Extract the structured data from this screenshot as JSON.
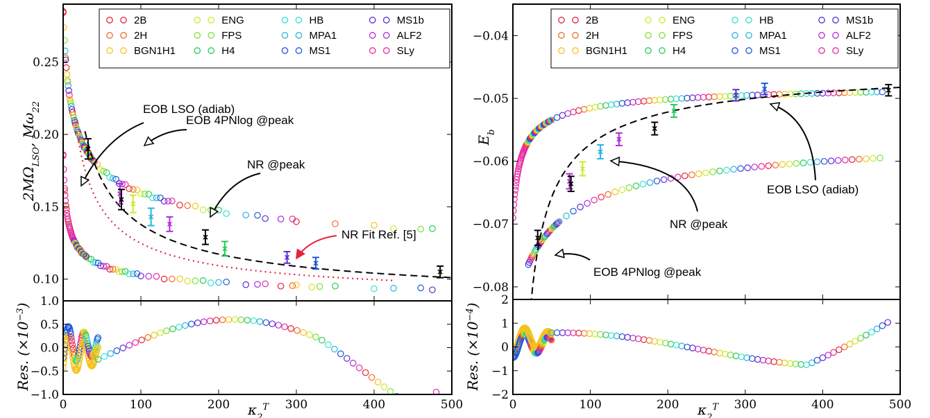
{
  "figure": {
    "legend_entries": [
      {
        "name": "2B",
        "color": "#e8203c"
      },
      {
        "name": "2H",
        "color": "#f26a2a"
      },
      {
        "name": "BGN1H1",
        "color": "#f5c21b"
      },
      {
        "name": "ENG",
        "color": "#cfe82a"
      },
      {
        "name": "FPS",
        "color": "#7ee03a"
      },
      {
        "name": "H4",
        "color": "#28c95a"
      },
      {
        "name": "HB",
        "color": "#36e0d0"
      },
      {
        "name": "MPA1",
        "color": "#2ab2e0"
      },
      {
        "name": "MS1",
        "color": "#1f56d8"
      },
      {
        "name": "MS1b",
        "color": "#5a2cd0"
      },
      {
        "name": "ALF2",
        "color": "#b02cd8"
      },
      {
        "name": "SLy",
        "color": "#e62aa0"
      }
    ]
  },
  "chart_data": [
    {
      "type": "scatter",
      "panel": "left-top",
      "ylabel": "2MΩ_LSO, Mω_22",
      "xlim": [
        0,
        500
      ],
      "ylim": [
        0.085,
        0.29
      ],
      "yticks": [
        "0.10",
        "0.15",
        "0.20",
        "0.25"
      ],
      "ytick_values": [
        0.1,
        0.15,
        0.2,
        0.25
      ],
      "nr_peak_points": [
        {
          "x": 32,
          "y": 0.19,
          "err": 0.007,
          "color": "#000000"
        },
        {
          "x": 73,
          "y": 0.159,
          "err": 0.007,
          "color": "#b02cd8"
        },
        {
          "x": 75,
          "y": 0.155,
          "err": 0.007,
          "color": "#000000"
        },
        {
          "x": 90,
          "y": 0.152,
          "err": 0.006,
          "color": "#cfe82a"
        },
        {
          "x": 113,
          "y": 0.143,
          "err": 0.006,
          "color": "#2ab2e0"
        },
        {
          "x": 137,
          "y": 0.138,
          "err": 0.005,
          "color": "#b02cd8"
        },
        {
          "x": 183,
          "y": 0.129,
          "err": 0.005,
          "color": "#000000"
        },
        {
          "x": 208,
          "y": 0.121,
          "err": 0.005,
          "color": "#28c95a"
        },
        {
          "x": 288,
          "y": 0.115,
          "err": 0.004,
          "color": "#5a2cd0"
        },
        {
          "x": 325,
          "y": 0.111,
          "err": 0.004,
          "color": "#1f56d8"
        },
        {
          "x": 485,
          "y": 0.105,
          "err": 0.004,
          "color": "#000000"
        }
      ],
      "series_curves": {
        "eob_4pnlog_peak": {
          "a": 0.095,
          "b": 0.19,
          "c": 0.33,
          "d": 1.0
        },
        "eob_lso_adiab": {
          "a": 0.083,
          "b": 0.103,
          "c": 0.43,
          "d": 1.0
        }
      },
      "peak_scatter_x": [
        0,
        3,
        6,
        9,
        12,
        15,
        18,
        21,
        24,
        27,
        30,
        33,
        36,
        40,
        44,
        48,
        52,
        56,
        60,
        64,
        68,
        72,
        76,
        80,
        85,
        90,
        95,
        100,
        105,
        110,
        115,
        120,
        125,
        130,
        135,
        140,
        150,
        160,
        170,
        180,
        190,
        200,
        210,
        235,
        250,
        260,
        280,
        295,
        300,
        350,
        400,
        425,
        460,
        475
      ],
      "lso_scatter_x": [
        0,
        2,
        4,
        6,
        8,
        10,
        12,
        14,
        16,
        18,
        20,
        22,
        24,
        26,
        28,
        30,
        33,
        36,
        39,
        42,
        45,
        48,
        52,
        56,
        60,
        64,
        68,
        72,
        76,
        80,
        85,
        90,
        95,
        100,
        110,
        120,
        130,
        140,
        150,
        160,
        170,
        180,
        190,
        200,
        210,
        235,
        250,
        260,
        280,
        295,
        300,
        320,
        330,
        350,
        400,
        425,
        460,
        475
      ],
      "nr_fit_curve": {
        "x_start": 15,
        "x_end": 425
      },
      "eob_dash_curve": {
        "x_start": 28,
        "x_end": 500
      },
      "annotations": [
        {
          "text": "EOB LSO (adiab)"
        },
        {
          "text": "EOB 4PNlog @peak"
        },
        {
          "text": "NR @peak"
        },
        {
          "text": "NR Fit Ref. [5]"
        }
      ]
    },
    {
      "type": "scatter",
      "panel": "left-bottom",
      "ylabel": "Res. (×10⁻³)",
      "xlabel": "κ₂ᵀ",
      "xlim": [
        0,
        500
      ],
      "ylim": [
        -1.0,
        1.0
      ],
      "yticks": [
        "1.0",
        "0.5",
        "0.0",
        "−0.5",
        "−1.0"
      ],
      "ytick_values": [
        1.0,
        0.5,
        0.0,
        -0.5,
        -1.0
      ],
      "xticks": [
        "0",
        "100",
        "200",
        "300",
        "400",
        "500"
      ],
      "xtick_values": [
        0,
        100,
        200,
        300,
        400,
        500
      ]
    },
    {
      "type": "scatter",
      "panel": "right-top",
      "ylabel": "E_b",
      "xlim": [
        0,
        500
      ],
      "ylim": [
        -0.082,
        -0.035
      ],
      "yticks": [
        "−0.04",
        "−0.05",
        "−0.06",
        "−0.07",
        "−0.08"
      ],
      "ytick_values": [
        -0.04,
        -0.05,
        -0.06,
        -0.07,
        -0.08
      ],
      "nr_peak_points": [
        {
          "x": 32,
          "y": -0.0722,
          "err": 0.0012,
          "color": "#000000"
        },
        {
          "x": 73,
          "y": -0.0632,
          "err": 0.0012,
          "color": "#b02cd8"
        },
        {
          "x": 75,
          "y": -0.0636,
          "err": 0.0012,
          "color": "#000000"
        },
        {
          "x": 90,
          "y": -0.0612,
          "err": 0.0011,
          "color": "#cfe82a"
        },
        {
          "x": 113,
          "y": -0.0585,
          "err": 0.0011,
          "color": "#2ab2e0"
        },
        {
          "x": 137,
          "y": -0.0565,
          "err": 0.001,
          "color": "#b02cd8"
        },
        {
          "x": 183,
          "y": -0.0548,
          "err": 0.001,
          "color": "#000000"
        },
        {
          "x": 208,
          "y": -0.052,
          "err": 0.001,
          "color": "#28c95a"
        },
        {
          "x": 288,
          "y": -0.0495,
          "err": 0.0009,
          "color": "#5a2cd0"
        },
        {
          "x": 325,
          "y": -0.0485,
          "err": 0.0009,
          "color": "#1f56d8"
        },
        {
          "x": 485,
          "y": -0.0487,
          "err": 0.0009,
          "color": "#000000"
        }
      ],
      "annotations": [
        {
          "text": "EOB LSO (adiab)"
        },
        {
          "text": "NR @peak"
        },
        {
          "text": "EOB 4PNlog @peak"
        }
      ]
    },
    {
      "type": "scatter",
      "panel": "right-bottom",
      "ylabel": "Res. (×10⁻⁴)",
      "xlabel": "κ₂ᵀ",
      "xlim": [
        0,
        500
      ],
      "ylim": [
        -2,
        2
      ],
      "yticks": [
        "2",
        "1",
        "0",
        "−1",
        "−2"
      ],
      "ytick_values": [
        2,
        1,
        0,
        -1,
        -2
      ],
      "xticks": [
        "0",
        "100",
        "200",
        "300",
        "400",
        "500"
      ],
      "xtick_values": [
        0,
        100,
        200,
        300,
        400,
        500
      ]
    }
  ]
}
